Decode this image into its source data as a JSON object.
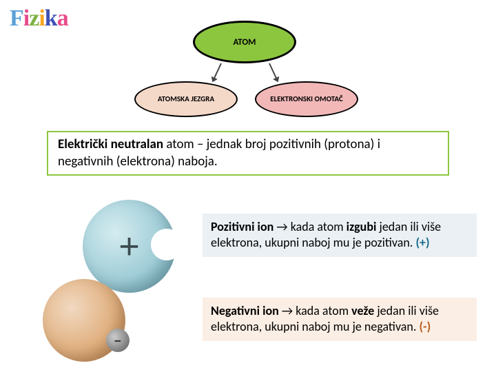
{
  "logo": {
    "letters": [
      "F",
      "i",
      "z",
      "i",
      "k",
      "a"
    ],
    "colors": [
      "#5aa0d8",
      "#e84c8a",
      "#7cb342",
      "#f5a623",
      "#3f51b5",
      "#e84c8a"
    ]
  },
  "diagram": {
    "root": {
      "label": "ATOM",
      "bg": "#8cc63f",
      "border": "#000000"
    },
    "left_child": {
      "label": "ATOMSKA JEZGRA",
      "bg": "#f4d9c9"
    },
    "right_child": {
      "label": "ELEKTRONSKI OMOTAČ",
      "bg": "#f2b8b8"
    }
  },
  "neutral": {
    "bold": "Električki neutralan",
    "rest": " atom – jednak broj pozitivnih (protona) i negativnih (elektrona) naboja.",
    "border_color": "#8cc63f"
  },
  "positive_ion": {
    "title": "Pozitivni ion",
    "arrow": " → ",
    "text1": "kada atom ",
    "bold1": "izgubi",
    "text2": " jedan ili više elektrona,  ukupni naboj mu je pozitivan. ",
    "sign": "(+)",
    "bg": "#eaf0f4",
    "sign_color": "#1a6b8c",
    "illus_color": "#a0cdd7"
  },
  "negative_ion": {
    "title": "Negativni ion",
    "arrow": " → ",
    "text1": "kada atom ",
    "bold1": "veže",
    "text2": " jedan ili više elektrona,  ukupni naboj mu je negativan. ",
    "sign": "(-)",
    "bg": "#fbeee4",
    "sign_color": "#b85c1c",
    "illus_color": "#e0b080"
  }
}
